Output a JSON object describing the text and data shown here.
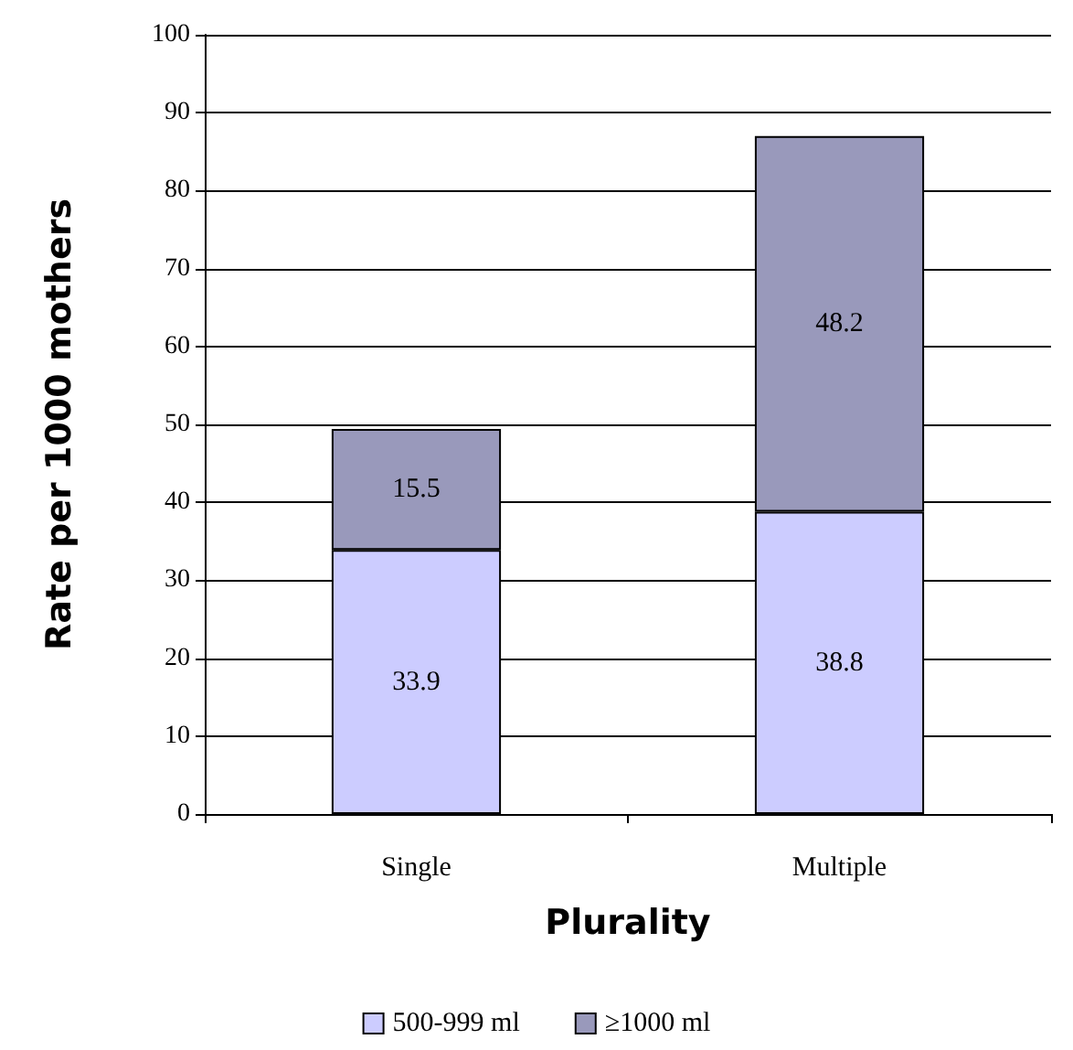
{
  "chart_data": {
    "type": "bar",
    "stacked": true,
    "categories": [
      "Single",
      "Multiple"
    ],
    "series": [
      {
        "name": "500-999 ml",
        "color": "#ccccff",
        "values": [
          33.9,
          38.8
        ]
      },
      {
        "name": "≥1000 ml",
        "color": "#9999bb",
        "values": [
          15.5,
          48.2
        ]
      }
    ],
    "ylim": [
      0,
      100
    ],
    "yticks": [
      0,
      10,
      20,
      30,
      40,
      50,
      60,
      70,
      80,
      90,
      100
    ],
    "xlabel": "Plurality",
    "ylabel": "Rate per 1000 mothers",
    "grid": "y",
    "legend": "bottom",
    "data_labels": true
  }
}
